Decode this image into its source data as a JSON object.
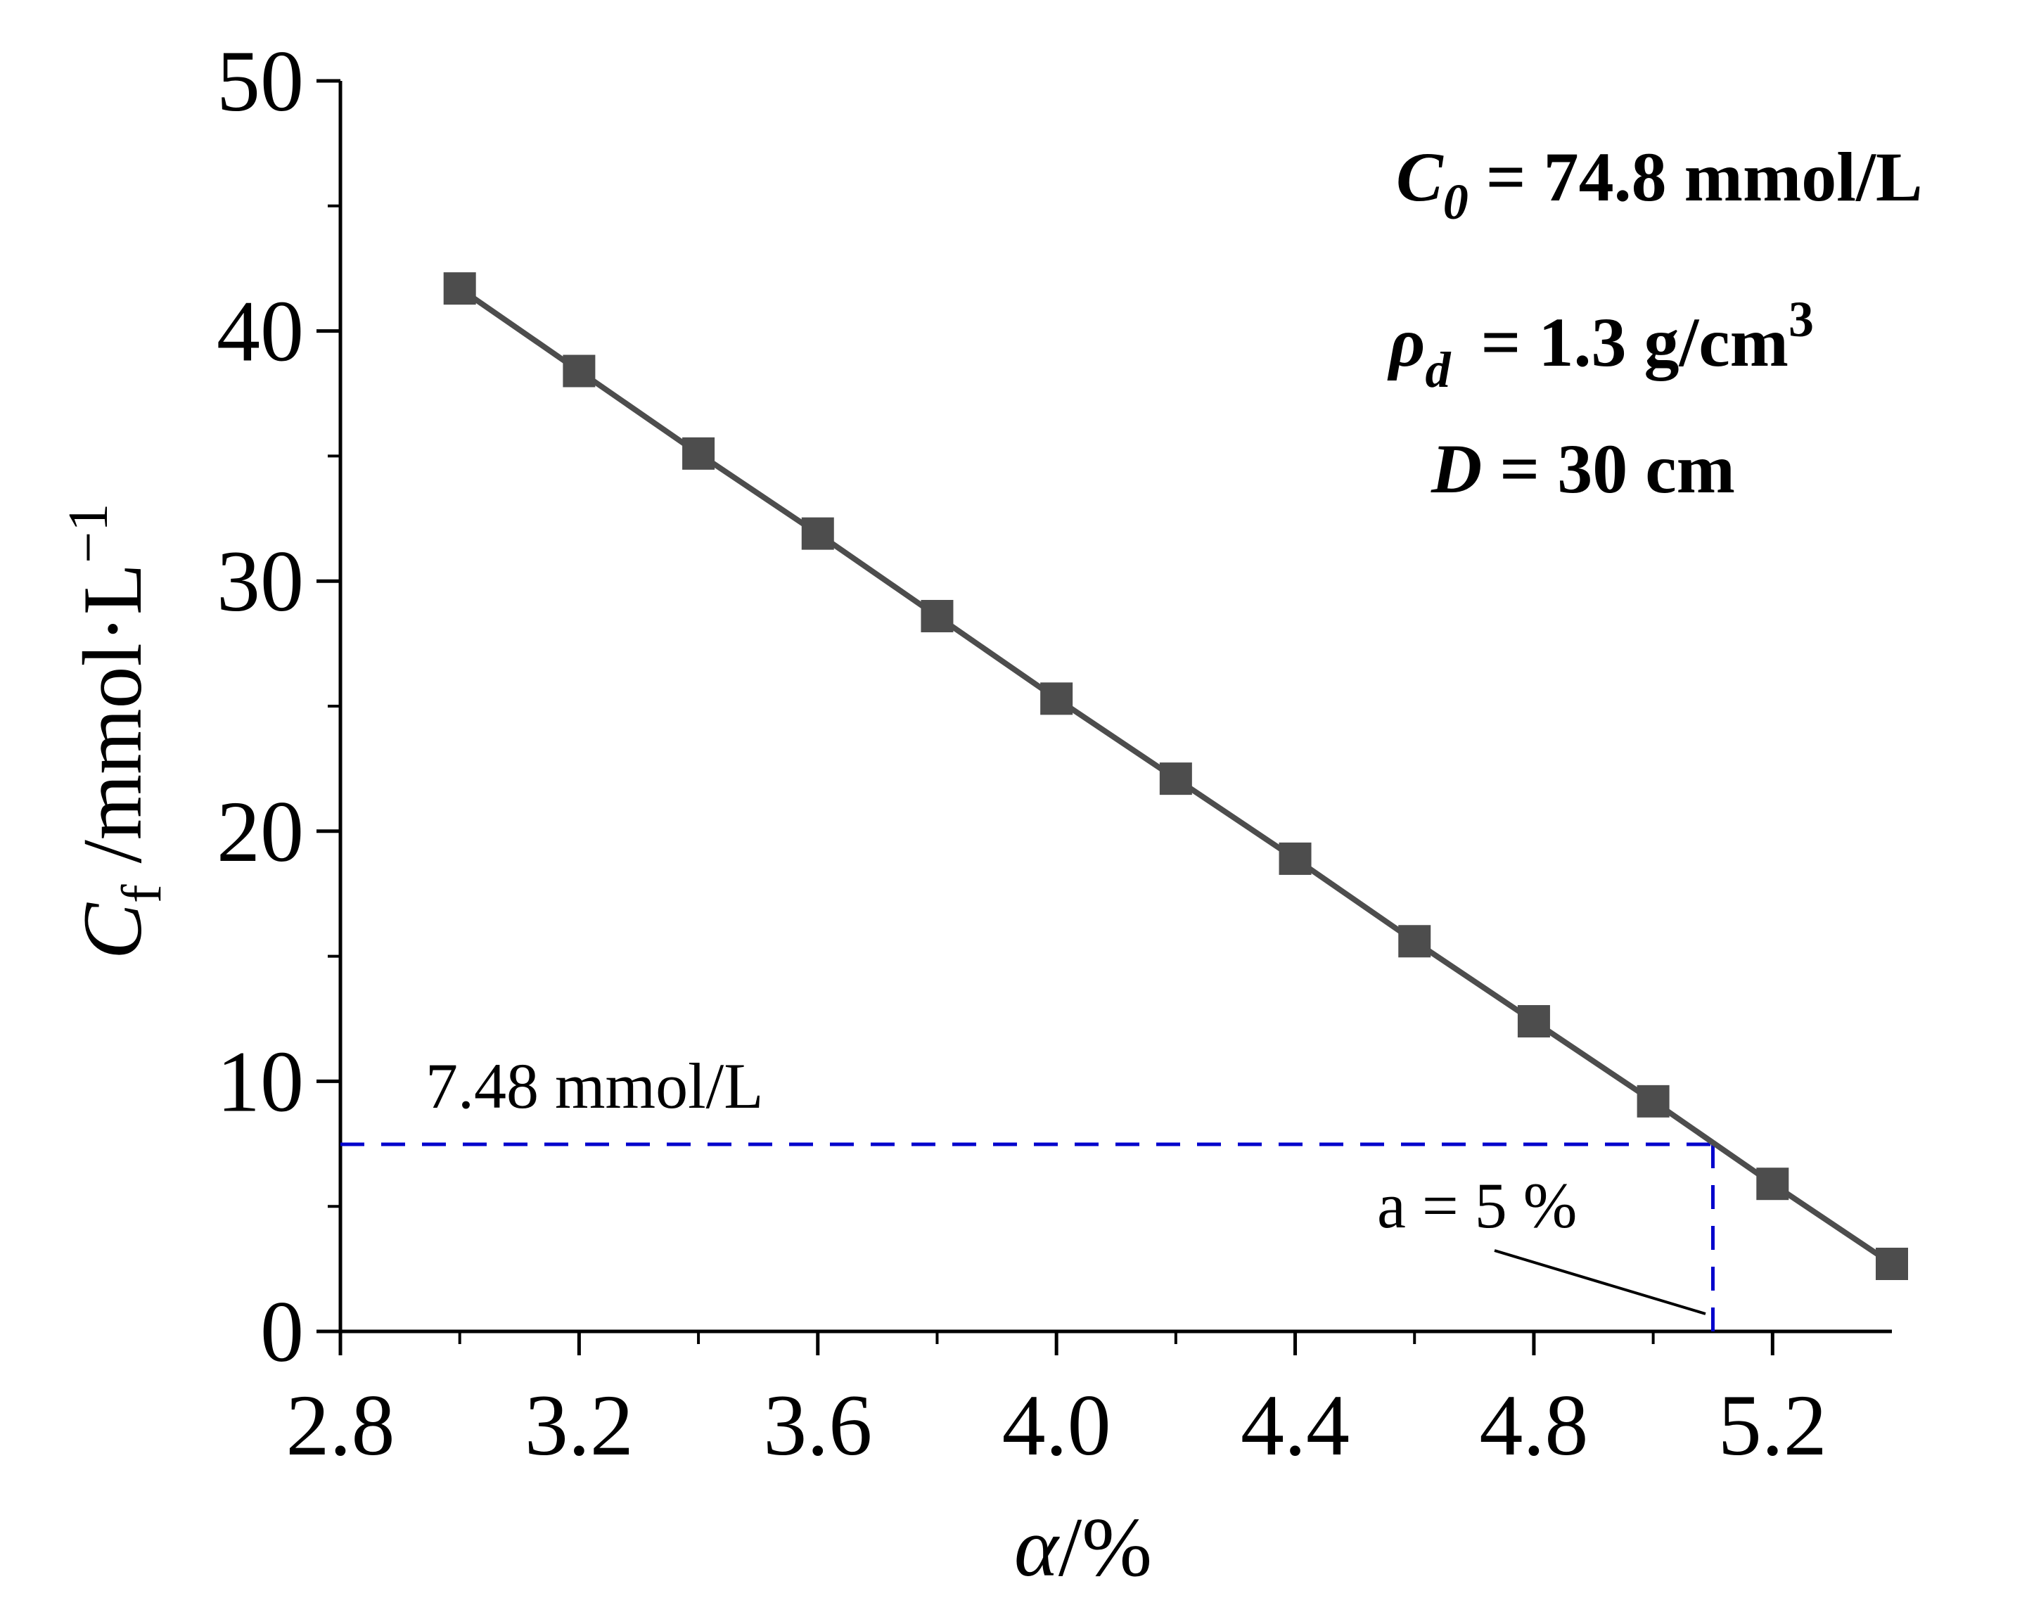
{
  "chart_data": {
    "type": "line",
    "title": "",
    "xlabel": {
      "symbol": "α",
      "unit": "/%"
    },
    "ylabel": {
      "symbol": "C",
      "subscript": "f",
      "unit": " /mmol·L",
      "superscript": "−1"
    },
    "xlim": [
      2.8,
      5.4
    ],
    "ylim": [
      0,
      50
    ],
    "xticks": [
      2.8,
      3.2,
      3.6,
      4.0,
      4.4,
      4.8,
      5.2
    ],
    "xtick_labels": [
      "2.8",
      "3.2",
      "3.6",
      "4.0",
      "4.4",
      "4.8",
      "5.2"
    ],
    "yticks": [
      0,
      10,
      20,
      30,
      40,
      50
    ],
    "ytick_labels": [
      "0",
      "10",
      "20",
      "30",
      "40",
      "50"
    ],
    "y_minor_ticks": [
      5,
      15,
      25,
      35,
      45
    ],
    "x_minor_ticks": [
      3.0,
      3.4,
      3.8,
      4.2,
      4.6,
      5.0
    ],
    "grid": false,
    "series": [
      {
        "name": "Cf",
        "color": "#4d4d4d",
        "marker": "square",
        "x": [
          3.0,
          3.2,
          3.4,
          3.6,
          3.8,
          4.0,
          4.2,
          4.4,
          4.6,
          4.8,
          5.0,
          5.2,
          5.4
        ],
        "y": [
          41.7,
          38.4,
          35.1,
          31.9,
          28.6,
          25.3,
          22.1,
          18.9,
          15.6,
          12.4,
          9.2,
          5.9,
          2.7
        ]
      }
    ],
    "reference": {
      "y_value": 7.48,
      "x_value": 5.1,
      "color": "#0000cc",
      "y_label": "7.48 mmol/L",
      "x_label": "a = 5 %"
    },
    "annotations": [
      {
        "symbol": "C",
        "subscript": "0",
        "text": " = 74.8 mmol/L"
      },
      {
        "symbol": "ρ",
        "subscript": "d",
        "text": " = 1.3 g/cm",
        "superscript": "3"
      },
      {
        "symbol": "D",
        "text": " = 30 cm"
      }
    ]
  }
}
